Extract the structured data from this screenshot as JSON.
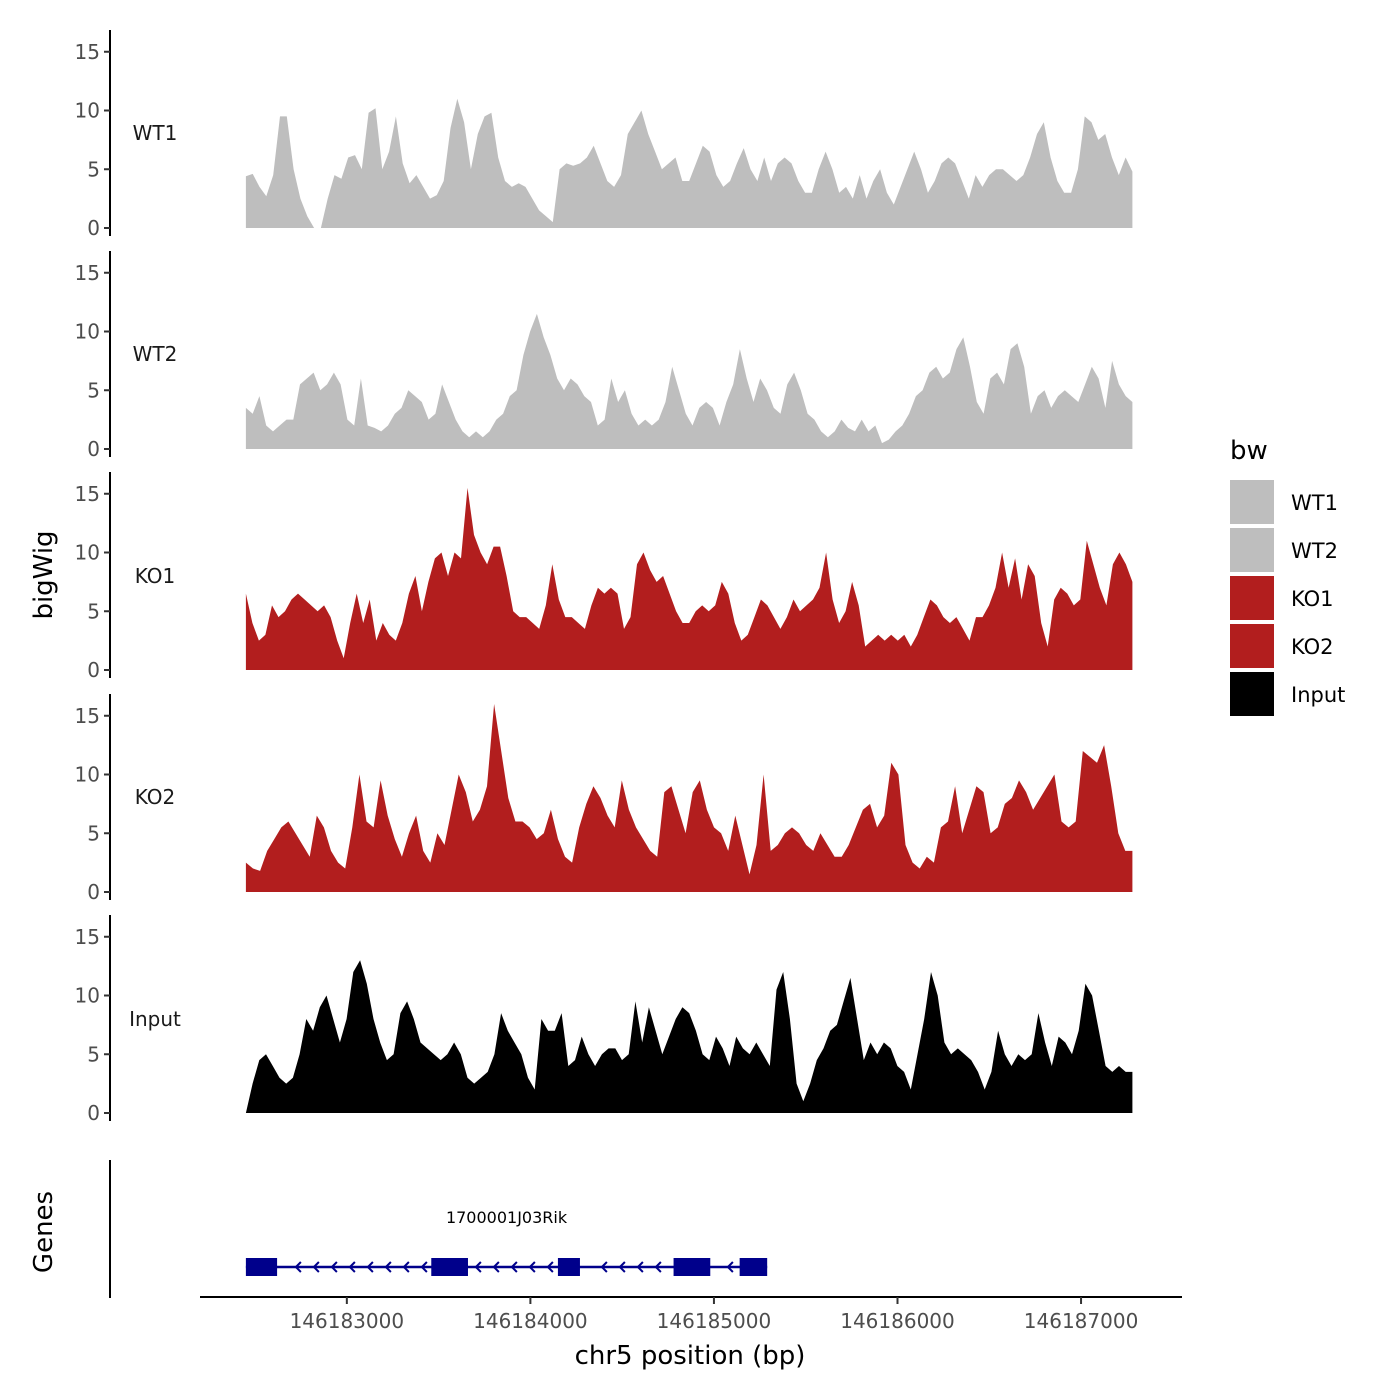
{
  "chart_data": {
    "type": "area",
    "chromosome": "chr5",
    "xlabel": "chr5 position (bp)",
    "ylabel": "bigWig",
    "gene_panel_label": "Genes",
    "xlim": [
      146182200,
      146187550
    ],
    "data_range": [
      146182450,
      146187280
    ],
    "x_ticks": [
      146183000,
      146184000,
      146185000,
      146186000,
      146187000
    ],
    "x_tick_labels": [
      "146183000",
      "146184000",
      "146185000",
      "146186000",
      "146187000"
    ],
    "ylim": [
      0,
      16.5
    ],
    "y_ticks": [
      0,
      5,
      10,
      15
    ],
    "y_tick_labels": [
      "0",
      "5",
      "10",
      "15"
    ],
    "legend": {
      "title": "bw",
      "entries": [
        {
          "label": "WT1",
          "color": "#bebebe"
        },
        {
          "label": "WT2",
          "color": "#bebebe"
        },
        {
          "label": "KO1",
          "color": "#b21e1e"
        },
        {
          "label": "KO2",
          "color": "#b21e1e"
        },
        {
          "label": "Input",
          "color": "#000000"
        }
      ]
    },
    "series": [
      {
        "name": "WT1",
        "color": "#bebebe",
        "values": [
          4.4,
          4.6,
          3.5,
          2.7,
          4.5,
          9.5,
          9.5,
          5.0,
          2.5,
          1.0,
          0.0,
          0.0,
          2.5,
          4.5,
          4.2,
          6.0,
          6.2,
          5.0,
          9.8,
          10.2,
          5.0,
          6.5,
          9.5,
          5.5,
          3.8,
          4.5,
          3.5,
          2.5,
          2.8,
          4.0,
          8.5,
          11.0,
          9.0,
          5.0,
          8.0,
          9.5,
          9.8,
          6.0,
          4.0,
          3.5,
          3.8,
          3.5,
          2.5,
          1.5,
          1.0,
          0.5,
          5.0,
          5.5,
          5.3,
          5.5,
          6.0,
          7.0,
          5.5,
          4.0,
          3.5,
          4.5,
          8.0,
          9.0,
          10.0,
          8.0,
          6.5,
          5.0,
          5.5,
          6.0,
          4.0,
          4.0,
          5.5,
          7.0,
          6.5,
          4.5,
          3.5,
          4.0,
          5.5,
          6.8,
          5.0,
          4.0,
          6.0,
          4.0,
          5.5,
          6.0,
          5.5,
          4.0,
          3.0,
          3.0,
          5.0,
          6.5,
          5.0,
          3.0,
          3.5,
          2.5,
          4.5,
          2.5,
          4.0,
          5.0,
          3.0,
          2.0,
          3.5,
          5.0,
          6.5,
          5.0,
          3.0,
          4.0,
          5.5,
          6.0,
          5.5,
          4.0,
          2.5,
          4.5,
          3.5,
          4.5,
          5.0,
          5.0,
          4.5,
          4.0,
          4.5,
          6.0,
          8.0,
          9.0,
          6.0,
          4.0,
          3.0,
          3.0,
          5.0,
          9.5,
          9.0,
          7.5,
          8.0,
          6.0,
          4.5,
          6.0,
          4.8
        ]
      },
      {
        "name": "WT2",
        "color": "#bebebe",
        "values": [
          3.5,
          3.0,
          4.5,
          2.0,
          1.5,
          2.0,
          2.5,
          2.5,
          5.5,
          6.0,
          6.5,
          5.0,
          5.5,
          6.5,
          5.5,
          2.5,
          2.0,
          6.0,
          2.0,
          1.8,
          1.5,
          2.0,
          3.0,
          3.5,
          5.0,
          4.5,
          4.0,
          2.5,
          3.0,
          5.5,
          4.0,
          2.5,
          1.5,
          1.0,
          1.5,
          1.0,
          1.5,
          2.5,
          3.0,
          4.5,
          5.0,
          8.0,
          10.0,
          11.5,
          9.5,
          8.0,
          6.0,
          5.0,
          6.0,
          5.5,
          4.5,
          4.0,
          2.0,
          2.5,
          6.0,
          4.0,
          5.0,
          3.0,
          2.0,
          2.5,
          2.0,
          2.5,
          4.0,
          7.0,
          5.0,
          3.0,
          2.0,
          3.5,
          4.0,
          3.5,
          2.0,
          4.0,
          5.5,
          8.5,
          6.0,
          4.0,
          6.0,
          5.0,
          3.5,
          3.0,
          5.5,
          6.5,
          5.0,
          3.0,
          2.5,
          1.5,
          1.0,
          1.5,
          2.5,
          1.8,
          1.5,
          2.5,
          1.5,
          2.0,
          0.5,
          0.8,
          1.5,
          2.0,
          3.0,
          4.5,
          5.0,
          6.5,
          7.0,
          6.0,
          6.5,
          8.5,
          9.5,
          7.0,
          4.0,
          3.0,
          6.0,
          6.5,
          5.5,
          8.5,
          9.0,
          7.0,
          3.0,
          4.5,
          5.0,
          3.5,
          4.5,
          5.0,
          4.5,
          4.0,
          5.5,
          7.0,
          6.0,
          3.5,
          7.5,
          5.5,
          4.5,
          4.0
        ]
      },
      {
        "name": "KO1",
        "color": "#b21e1e",
        "values": [
          6.5,
          4.0,
          2.5,
          3.0,
          5.5,
          4.5,
          5.0,
          6.0,
          6.5,
          6.0,
          5.5,
          5.0,
          5.5,
          4.5,
          2.5,
          1.0,
          4.0,
          6.5,
          4.0,
          6.0,
          2.5,
          4.0,
          3.0,
          2.5,
          4.0,
          6.5,
          8.0,
          5.0,
          7.5,
          9.5,
          10.0,
          8.0,
          10.0,
          9.5,
          15.5,
          11.5,
          10.0,
          9.0,
          10.5,
          10.5,
          8.0,
          5.0,
          4.5,
          4.5,
          4.0,
          3.5,
          5.5,
          9.0,
          6.0,
          4.5,
          4.5,
          4.0,
          3.5,
          5.5,
          7.0,
          6.5,
          7.0,
          6.5,
          3.5,
          4.5,
          9.0,
          10.0,
          8.5,
          7.5,
          8.0,
          6.5,
          5.0,
          4.0,
          4.0,
          5.0,
          5.5,
          5.0,
          5.5,
          7.5,
          6.5,
          4.0,
          2.5,
          3.0,
          4.5,
          6.0,
          5.5,
          4.5,
          3.5,
          4.5,
          6.0,
          5.0,
          5.5,
          6.0,
          7.0,
          10.0,
          6.0,
          4.0,
          5.0,
          7.5,
          5.5,
          2.0,
          2.5,
          3.0,
          2.5,
          3.0,
          2.5,
          3.0,
          2.0,
          3.0,
          4.5,
          6.0,
          5.5,
          4.5,
          4.0,
          4.5,
          3.5,
          2.5,
          4.5,
          4.5,
          5.5,
          7.0,
          10.0,
          7.0,
          9.5,
          6.0,
          9.0,
          8.0,
          4.0,
          2.0,
          6.0,
          7.0,
          6.5,
          5.5,
          6.0,
          11.0,
          9.0,
          7.0,
          5.5,
          9.0,
          10.0,
          9.0,
          7.5
        ]
      },
      {
        "name": "KO2",
        "color": "#b21e1e",
        "values": [
          2.5,
          2.0,
          1.8,
          3.5,
          4.5,
          5.5,
          6.0,
          5.0,
          4.0,
          3.0,
          6.5,
          5.5,
          3.5,
          2.5,
          2.0,
          5.5,
          10.0,
          6.0,
          5.5,
          9.5,
          6.5,
          4.5,
          3.0,
          5.0,
          6.5,
          3.5,
          2.5,
          5.0,
          4.0,
          7.0,
          10.0,
          8.5,
          6.0,
          7.0,
          9.0,
          16.0,
          12.0,
          8.0,
          6.0,
          6.0,
          5.5,
          4.5,
          5.0,
          7.0,
          4.5,
          3.0,
          2.5,
          5.5,
          7.5,
          9.0,
          8.0,
          6.5,
          5.5,
          9.5,
          7.0,
          5.5,
          4.5,
          3.5,
          3.0,
          8.5,
          9.0,
          7.0,
          5.0,
          8.5,
          9.5,
          7.0,
          5.5,
          5.0,
          3.5,
          6.5,
          4.0,
          1.5,
          4.0,
          10.0,
          3.5,
          4.0,
          5.0,
          5.5,
          5.0,
          4.0,
          3.5,
          5.0,
          4.0,
          3.0,
          3.0,
          4.0,
          5.5,
          7.0,
          7.5,
          5.5,
          6.5,
          11.0,
          10.0,
          4.0,
          2.5,
          2.0,
          3.0,
          2.5,
          5.5,
          6.0,
          9.0,
          5.0,
          7.0,
          9.0,
          8.5,
          5.0,
          5.5,
          7.5,
          8.0,
          9.5,
          8.5,
          7.0,
          8.0,
          9.0,
          10.0,
          6.0,
          5.5,
          6.0,
          12.0,
          11.5,
          11.0,
          12.5,
          9.0,
          5.0,
          3.5,
          3.5
        ]
      },
      {
        "name": "Input",
        "color": "#000000",
        "values": [
          0.0,
          2.5,
          4.5,
          5.0,
          4.0,
          3.0,
          2.5,
          3.0,
          5.0,
          8.0,
          7.0,
          9.0,
          10.0,
          8.0,
          6.0,
          8.0,
          12.0,
          13.0,
          11.0,
          8.0,
          6.0,
          4.5,
          5.0,
          8.5,
          9.5,
          8.0,
          6.0,
          5.5,
          5.0,
          4.5,
          5.0,
          6.0,
          5.0,
          3.0,
          2.5,
          3.0,
          3.5,
          5.0,
          8.5,
          7.0,
          6.0,
          5.0,
          3.0,
          2.0,
          8.0,
          7.0,
          7.0,
          8.5,
          4.0,
          4.5,
          6.5,
          5.0,
          4.0,
          5.0,
          5.5,
          5.5,
          4.5,
          5.0,
          9.5,
          6.0,
          9.0,
          7.0,
          5.0,
          6.5,
          8.0,
          9.0,
          8.5,
          7.0,
          5.0,
          4.5,
          6.5,
          5.5,
          4.0,
          6.5,
          5.5,
          5.0,
          6.0,
          5.0,
          4.0,
          10.5,
          12.0,
          8.0,
          2.5,
          1.0,
          2.5,
          4.5,
          5.5,
          7.0,
          7.5,
          9.5,
          11.5,
          8.0,
          4.5,
          6.0,
          5.0,
          6.0,
          5.5,
          4.0,
          3.5,
          2.0,
          5.0,
          8.0,
          12.0,
          10.0,
          6.0,
          5.0,
          5.5,
          5.0,
          4.5,
          3.5,
          2.0,
          3.5,
          7.0,
          5.0,
          4.0,
          5.0,
          4.5,
          5.0,
          8.5,
          6.0,
          4.0,
          6.5,
          6.0,
          5.0,
          7.0,
          11.0,
          10.0,
          7.0,
          4.0,
          3.5,
          4.0,
          3.5,
          3.5
        ]
      }
    ],
    "genes": [
      {
        "name": "1700001J03Rik",
        "strand": "-",
        "start": 146182450,
        "end": 146185290,
        "color": "#00008b",
        "exons": [
          [
            146182450,
            146182620
          ],
          [
            146183460,
            146183660
          ],
          [
            146184150,
            146184270
          ],
          [
            146184780,
            146184980
          ],
          [
            146185140,
            146185290
          ]
        ]
      }
    ]
  }
}
